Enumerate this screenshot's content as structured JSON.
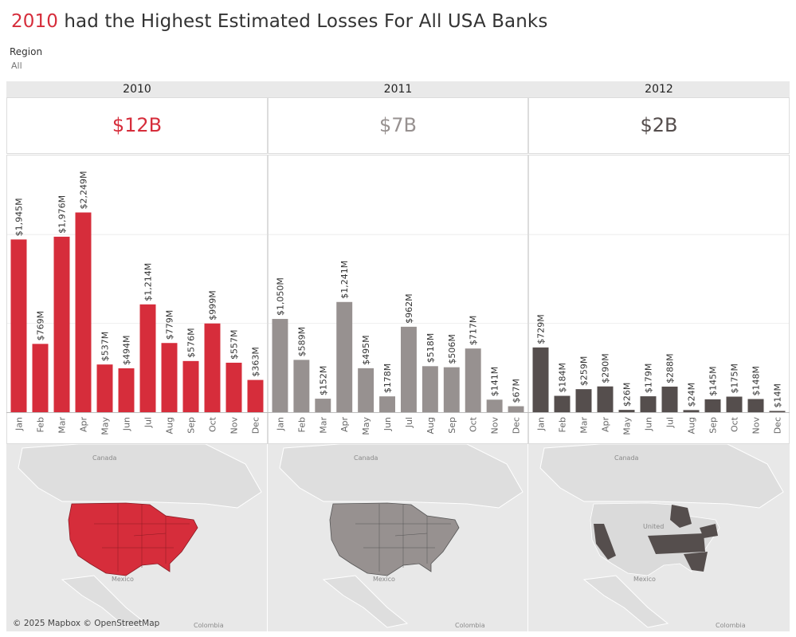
{
  "title": {
    "highlight": "2010",
    "rest": " had the Highest Estimated Losses For All USA Banks"
  },
  "filter": {
    "label": "Region",
    "value": "All"
  },
  "colors": {
    "2010": "#d62d3b",
    "2011": "#979190",
    "2012": "#554e4d"
  },
  "map_attribution": "© 2025 Mapbox © OpenStreetMap",
  "map_labels": {
    "canada": "Canada",
    "mexico": "Mexico",
    "colombia": "Colombia",
    "united": "United"
  },
  "months": [
    "Jan",
    "Feb",
    "Mar",
    "Apr",
    "May",
    "Jun",
    "Jul",
    "Aug",
    "Sep",
    "Oct",
    "Nov",
    "Dec"
  ],
  "panels": [
    {
      "year": "2010",
      "total": "$12B"
    },
    {
      "year": "2011",
      "total": "$7B"
    },
    {
      "year": "2012",
      "total": "$2B"
    }
  ],
  "chart_data": {
    "type": "bar",
    "title": "",
    "ylim": [
      0,
      2900
    ],
    "grid": true,
    "categories": [
      "Jan",
      "Feb",
      "Mar",
      "Apr",
      "May",
      "Jun",
      "Jul",
      "Aug",
      "Sep",
      "Oct",
      "Nov",
      "Dec"
    ],
    "series": [
      {
        "name": "2010",
        "values": [
          1945,
          769,
          1976,
          2249,
          537,
          494,
          1214,
          779,
          576,
          999,
          557,
          363
        ],
        "labels": [
          "$1,945M",
          "$769M",
          "$1,976M",
          "$2,249M",
          "$537M",
          "$494M",
          "$1,214M",
          "$779M",
          "$576M",
          "$999M",
          "$557M",
          "$363M"
        ]
      },
      {
        "name": "2011",
        "values": [
          1050,
          589,
          152,
          1241,
          495,
          178,
          962,
          518,
          506,
          717,
          141,
          67
        ],
        "labels": [
          "$1,050M",
          "$589M",
          "$152M",
          "$1,241M",
          "$495M",
          "$178M",
          "$962M",
          "$518M",
          "$506M",
          "$717M",
          "$141M",
          "$67M"
        ]
      },
      {
        "name": "2012",
        "values": [
          729,
          184,
          259,
          290,
          26,
          179,
          288,
          24,
          145,
          175,
          148,
          14
        ],
        "labels": [
          "$729M",
          "$184M",
          "$259M",
          "$290M",
          "$26M",
          "$179M",
          "$288M",
          "$24M",
          "$145M",
          "$175M",
          "$148M",
          "$14M"
        ]
      }
    ]
  }
}
